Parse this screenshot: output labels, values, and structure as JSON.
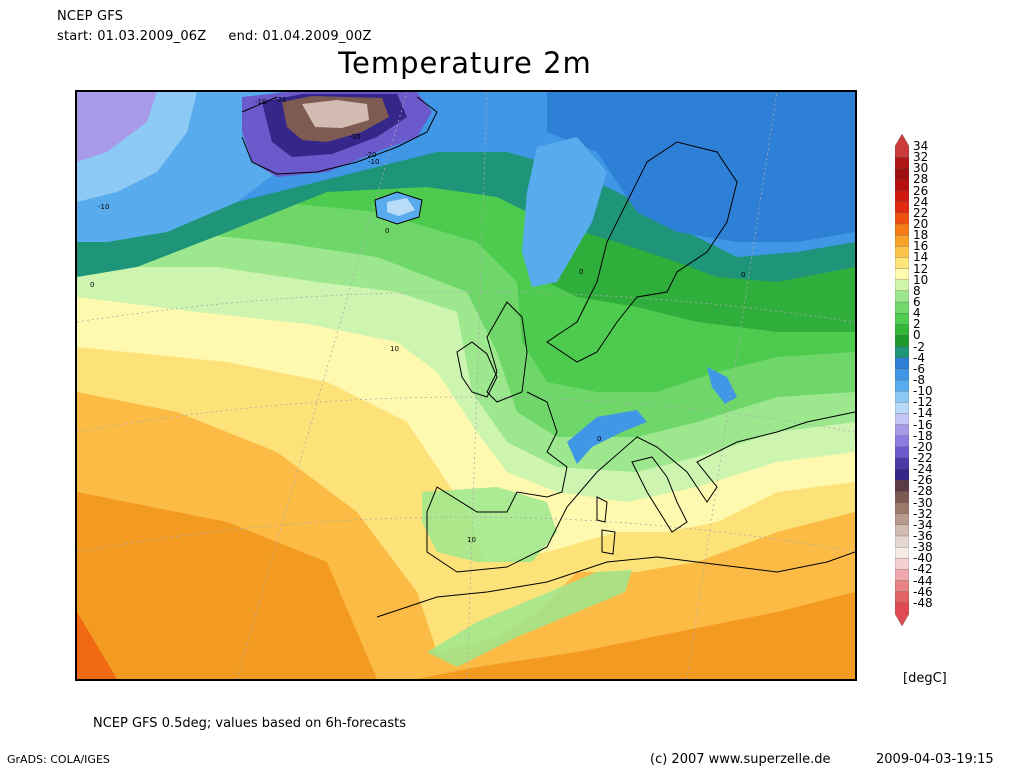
{
  "header": {
    "source": "NCEP GFS",
    "start": "start: 01.03.2009_06Z",
    "end": "end: 01.04.2009_00Z"
  },
  "title": "Temperature 2m",
  "legend": {
    "unit": "[degC]",
    "levels": [
      "34",
      "32",
      "30",
      "28",
      "26",
      "24",
      "22",
      "20",
      "18",
      "16",
      "14",
      "12",
      "10",
      "8",
      "6",
      "4",
      "2",
      "0",
      "-2",
      "-4",
      "-6",
      "-8",
      "-10",
      "-12",
      "-14",
      "-16",
      "-18",
      "-20",
      "-22",
      "-24",
      "-26",
      "-28",
      "-30",
      "-32",
      "-34",
      "-36",
      "-38",
      "-40",
      "-42",
      "-44",
      "-46",
      "-48"
    ],
    "colors": [
      "#cc3b3b",
      "#b01818",
      "#a01010",
      "#b81010",
      "#d01a10",
      "#e22a10",
      "#f0500f",
      "#f77b16",
      "#f9a22a",
      "#fbc448",
      "#fde57a",
      "#fffcb0",
      "#cef5a8",
      "#9de88e",
      "#71d96b",
      "#4fcc4f",
      "#33b83c",
      "#1e9a2d",
      "#1e9478",
      "#2e7fd6",
      "#3f97e5",
      "#58acee",
      "#8dc9f5",
      "#b8dcf8",
      "#c4c4f5",
      "#a79be9",
      "#8b7ee0",
      "#6a5acb",
      "#4b3aa8",
      "#35268a",
      "#5b3a44",
      "#7e5b52",
      "#9b7a6d",
      "#b89a8d",
      "#d2bcb2",
      "#e6d8d1",
      "#f4ebe7",
      "#f4cfd0",
      "#efa8ab",
      "#e98386",
      "#e36266",
      "#df4b51"
    ]
  },
  "contour_labels": [
    "-10",
    "-20",
    "-30",
    "-20",
    "-10",
    "-10",
    "0",
    "0",
    "0",
    "0",
    "10",
    "10",
    "0"
  ],
  "footer": {
    "note": "NCEP GFS 0.5deg; values based on 6h-forecasts",
    "software": "GrADS: COLA/IGES",
    "copyright": "(c) 2007 www.superzelle.de",
    "timestamp": "2009-04-03-19:15"
  }
}
